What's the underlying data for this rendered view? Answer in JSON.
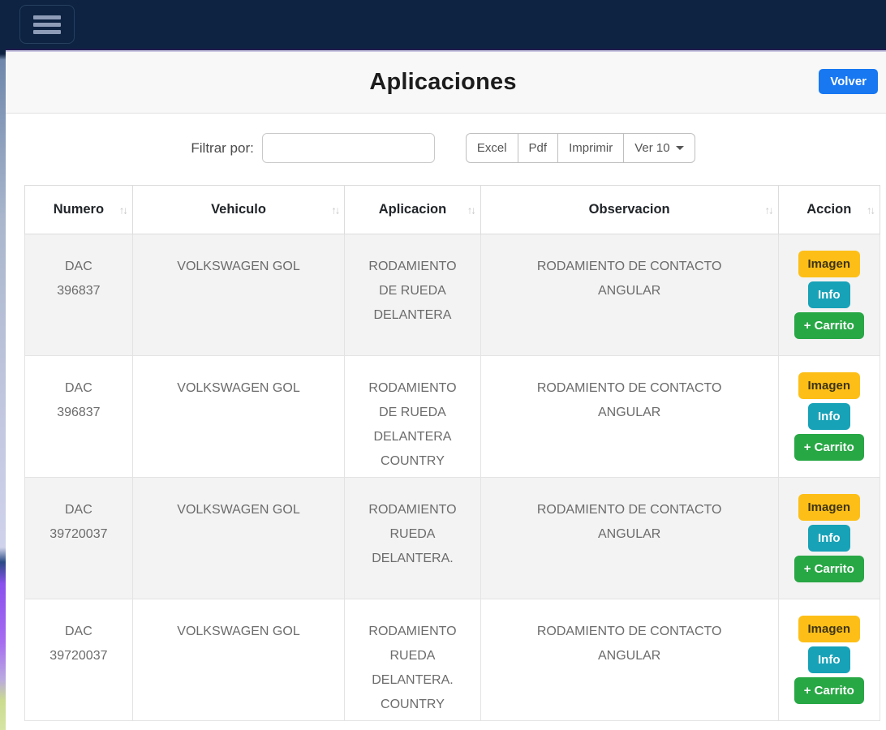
{
  "page": {
    "title": "Aplicaciones",
    "back_button_label": "Volver"
  },
  "toolbar": {
    "filter_label": "Filtrar por:",
    "filter_value": "",
    "export_buttons": [
      "Excel",
      "Pdf",
      "Imprimir"
    ],
    "page_size_label": "Ver 10"
  },
  "table": {
    "columns": [
      "Numero",
      "Vehiculo",
      "Aplicacion",
      "Observacion",
      "Accion"
    ],
    "sort_icon": "↑↓",
    "rows": [
      {
        "numero": "DAC 396837",
        "vehiculo": "VOLKSWAGEN GOL",
        "aplicacion": "RODAMIENTO DE RUEDA DELANTERA",
        "observacion": "RODAMIENTO DE CONTACTO ANGULAR"
      },
      {
        "numero": "DAC 396837",
        "vehiculo": "VOLKSWAGEN GOL",
        "aplicacion": "RODAMIENTO DE RUEDA DELANTERA COUNTRY",
        "observacion": "RODAMIENTO DE CONTACTO ANGULAR"
      },
      {
        "numero": "DAC 39720037",
        "vehiculo": "VOLKSWAGEN GOL",
        "aplicacion": "RODAMIENTO RUEDA DELANTERA.",
        "observacion": "RODAMIENTO DE CONTACTO ANGULAR"
      },
      {
        "numero": "DAC 39720037",
        "vehiculo": "VOLKSWAGEN GOL",
        "aplicacion": "RODAMIENTO RUEDA DELANTERA. COUNTRY",
        "observacion": "RODAMIENTO DE CONTACTO ANGULAR"
      }
    ],
    "action_buttons": [
      {
        "label": "Imagen",
        "color": "#fdbf17"
      },
      {
        "label": "Info",
        "color": "#17a2b8"
      },
      {
        "label": "+ Carrito",
        "color": "#28a745"
      }
    ]
  },
  "colors": {
    "navbar_bg": "#0e2342",
    "primary_button": "#1778f2",
    "warning_button": "#fdbf17",
    "info_button": "#17a2b8",
    "success_button": "#28a745",
    "stripe_row": "#f3f3f3"
  }
}
